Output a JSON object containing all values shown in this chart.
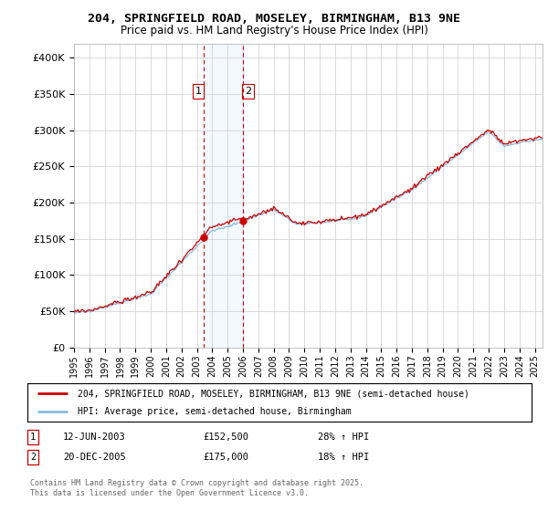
{
  "title_line1": "204, SPRINGFIELD ROAD, MOSELEY, BIRMINGHAM, B13 9NE",
  "title_line2": "Price paid vs. HM Land Registry's House Price Index (HPI)",
  "ylim": [
    0,
    420000
  ],
  "yticks": [
    0,
    50000,
    100000,
    150000,
    200000,
    250000,
    300000,
    350000,
    400000
  ],
  "ytick_labels": [
    "£0",
    "£50K",
    "£100K",
    "£150K",
    "£200K",
    "£250K",
    "£300K",
    "£350K",
    "£400K"
  ],
  "line1_color": "#cc0000",
  "line2_color": "#88bbdd",
  "grid_color": "#cccccc",
  "bg_color": "#ffffff",
  "legend_line1": "204, SPRINGFIELD ROAD, MOSELEY, BIRMINGHAM, B13 9NE (semi-detached house)",
  "legend_line2": "HPI: Average price, semi-detached house, Birmingham",
  "transaction1_date": "12-JUN-2003",
  "transaction1_price": "£152,500",
  "transaction1_hpi": "28% ↑ HPI",
  "transaction2_date": "20-DEC-2005",
  "transaction2_price": "£175,000",
  "transaction2_hpi": "18% ↑ HPI",
  "footer_text": "Contains HM Land Registry data © Crown copyright and database right 2025.\nThis data is licensed under the Open Government Licence v3.0.",
  "marker1_x": 2003.44,
  "marker1_y": 152500,
  "marker2_x": 2005.97,
  "marker2_y": 175000,
  "xmin": 1995,
  "xmax": 2025.5,
  "price1": 152500,
  "price2": 175000
}
